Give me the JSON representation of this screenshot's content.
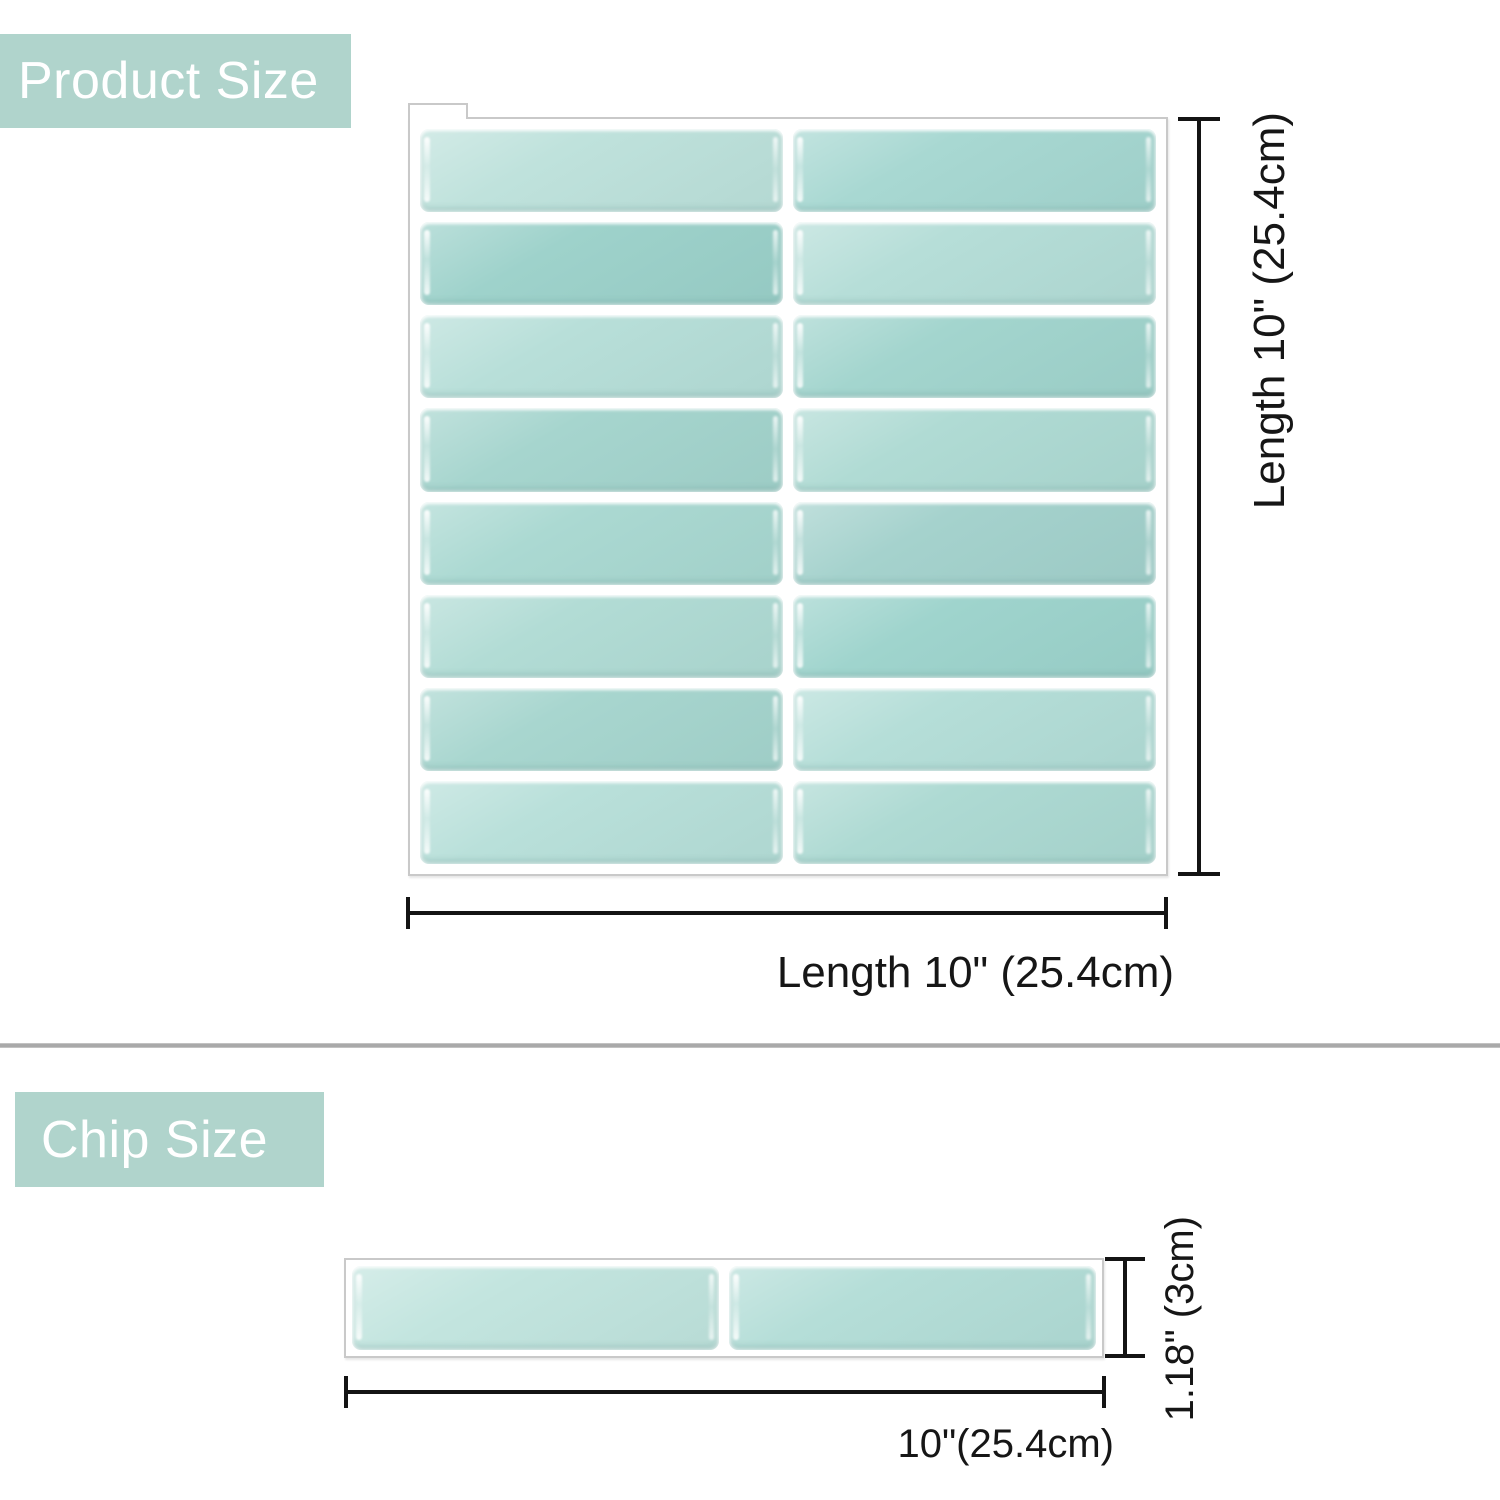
{
  "product_section": {
    "label": "Product Size",
    "vertical_dim_label": "Length 10\" (25.4cm)",
    "horizontal_dim_label": "Length 10\" (25.4cm)",
    "panel_tiles": {
      "rows": 8,
      "cols": 2,
      "colors": [
        [
          "#bfe2dc",
          "#a8d8d2"
        ],
        [
          "#9ed2cb",
          "#b6ded8"
        ],
        [
          "#b8dfd9",
          "#a3d5ce"
        ],
        [
          "#a6d5ce",
          "#b0dbd4"
        ],
        [
          "#abd9d2",
          "#a5d2cd"
        ],
        [
          "#b2dcd5",
          "#9fd4cd"
        ],
        [
          "#a8d6cf",
          "#b5ded8"
        ],
        [
          "#b9e0da",
          "#aedad3"
        ]
      ]
    }
  },
  "chip_section": {
    "label": "Chip Size",
    "vertical_dim_label": "1.18\" (3cm)",
    "horizontal_dim_label": "10\"(25.4cm)",
    "chip_tiles": {
      "rows": 1,
      "cols": 2,
      "colors": [
        "#c3e5df",
        "#b5ded8"
      ]
    }
  },
  "colors": {
    "label_bg": "#b0d4cc",
    "label_text": "#ffffff",
    "dim_line": "#141414",
    "dim_text": "#161616",
    "divider": "#a9a9a9",
    "frame_border": "#c9c9c9",
    "frame_bg": "#ffffff"
  }
}
